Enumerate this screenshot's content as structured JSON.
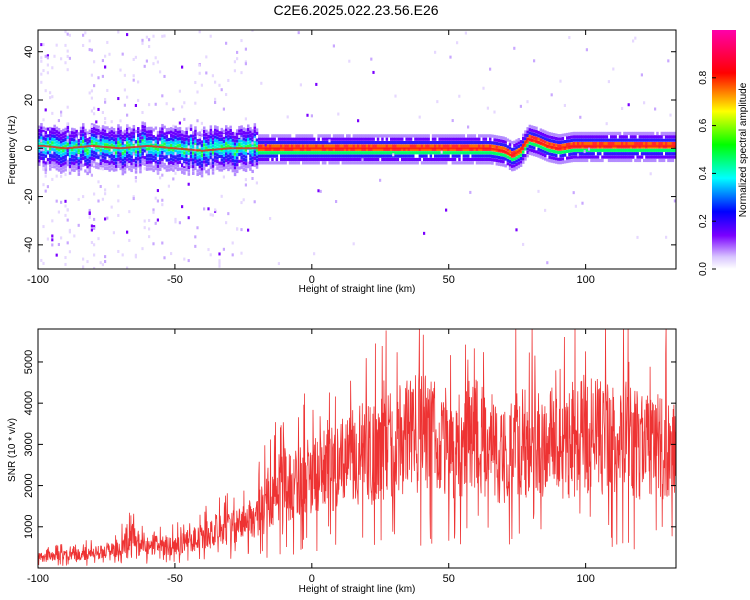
{
  "title": "C2E6.2025.022.23.56.E26",
  "chart_data": [
    {
      "type": "heatmap",
      "xlabel": "Height of straight line (km)",
      "ylabel": "Frequency (Hz)",
      "xlim": [
        -100,
        133
      ],
      "ylim": [
        -50,
        49
      ],
      "xticks": [
        -100,
        -50,
        0,
        50,
        100
      ],
      "yticks": [
        -40,
        -20,
        0,
        20,
        40
      ],
      "colorbar": {
        "label": "Normalized spectral amplitude",
        "range": [
          0,
          1
        ],
        "ticks": [
          "0.0",
          "0.2",
          "0.4",
          "0.6",
          "0.8"
        ],
        "colors": [
          "#ffffff",
          "#7a00ff",
          "#0000ff",
          "#00ffff",
          "#00ff00",
          "#ffff00",
          "#ff0000",
          "#ff00aa"
        ]
      },
      "peak_frequency_track": {
        "x": [
          -98,
          -90,
          -80,
          -70,
          -60,
          -50,
          -40,
          -30,
          -20,
          -10,
          0,
          10,
          20,
          30,
          40,
          50,
          60,
          65,
          70,
          73,
          76,
          79,
          82,
          86,
          90,
          95,
          100,
          110,
          120,
          133
        ],
        "y": [
          1,
          0,
          1,
          0,
          1,
          0,
          -1,
          0,
          0,
          0,
          0,
          0,
          0,
          0,
          0,
          0,
          0,
          0,
          -1,
          -3,
          -1,
          4,
          3,
          1,
          0,
          1,
          1,
          1,
          1,
          1
        ]
      }
    },
    {
      "type": "line",
      "xlabel": "Height of straight line (km)",
      "ylabel": "SNR (10 * v/v)",
      "xlim": [
        -100,
        133
      ],
      "ylim": [
        0,
        5800
      ],
      "xticks": [
        -100,
        -50,
        0,
        50,
        100
      ],
      "yticks": [
        1000,
        2000,
        3000,
        4000,
        5000
      ],
      "color": "#ee3333",
      "envelope": {
        "x": [
          -100,
          -90,
          -80,
          -70,
          -65,
          -60,
          -50,
          -40,
          -30,
          -20,
          -15,
          -10,
          0,
          10,
          20,
          30,
          35,
          40,
          50,
          60,
          70,
          75,
          80,
          90,
          100,
          110,
          120,
          133
        ],
        "y": [
          250,
          300,
          350,
          500,
          800,
          550,
          550,
          750,
          1000,
          1200,
          1800,
          2000,
          2200,
          2500,
          2700,
          3000,
          3200,
          3300,
          3000,
          3200,
          2700,
          3000,
          3000,
          2900,
          3300,
          3100,
          3000,
          2900
        ]
      }
    }
  ]
}
